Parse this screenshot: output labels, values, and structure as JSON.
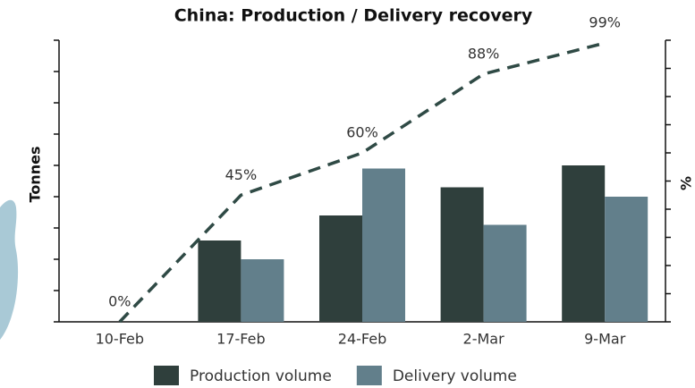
{
  "chart_data": {
    "type": "bar-line",
    "title": "China: Production / Delivery recovery",
    "ylabel": "Tonnes",
    "y2label": "%",
    "categories": [
      "10-Feb",
      "17-Feb",
      "24-Feb",
      "2-Mar",
      "9-Mar"
    ],
    "series": [
      {
        "name": "Production volume",
        "color": "#2f3f3c",
        "type": "bar",
        "values": [
          0,
          2.6,
          3.4,
          4.3,
          5.0
        ]
      },
      {
        "name": "Delivery volume",
        "color": "#627f8b",
        "type": "bar",
        "values": [
          0,
          2.0,
          4.9,
          3.1,
          4.0
        ]
      },
      {
        "type": "line",
        "axis": "y2",
        "color": "#2f4a45",
        "values": [
          0,
          45,
          60,
          88,
          99
        ],
        "value_labels": [
          "0%",
          "45%",
          "60%",
          "88%",
          "99%"
        ]
      }
    ],
    "ylim": [
      0,
      9
    ],
    "yticks": [
      0,
      1,
      2,
      3,
      4,
      5,
      6,
      7,
      8,
      9
    ],
    "y2lim": [
      0,
      100
    ],
    "y2ticks": [
      0,
      10,
      20,
      30,
      40,
      50,
      60,
      70,
      80,
      90,
      100
    ],
    "legend": "bottom"
  }
}
